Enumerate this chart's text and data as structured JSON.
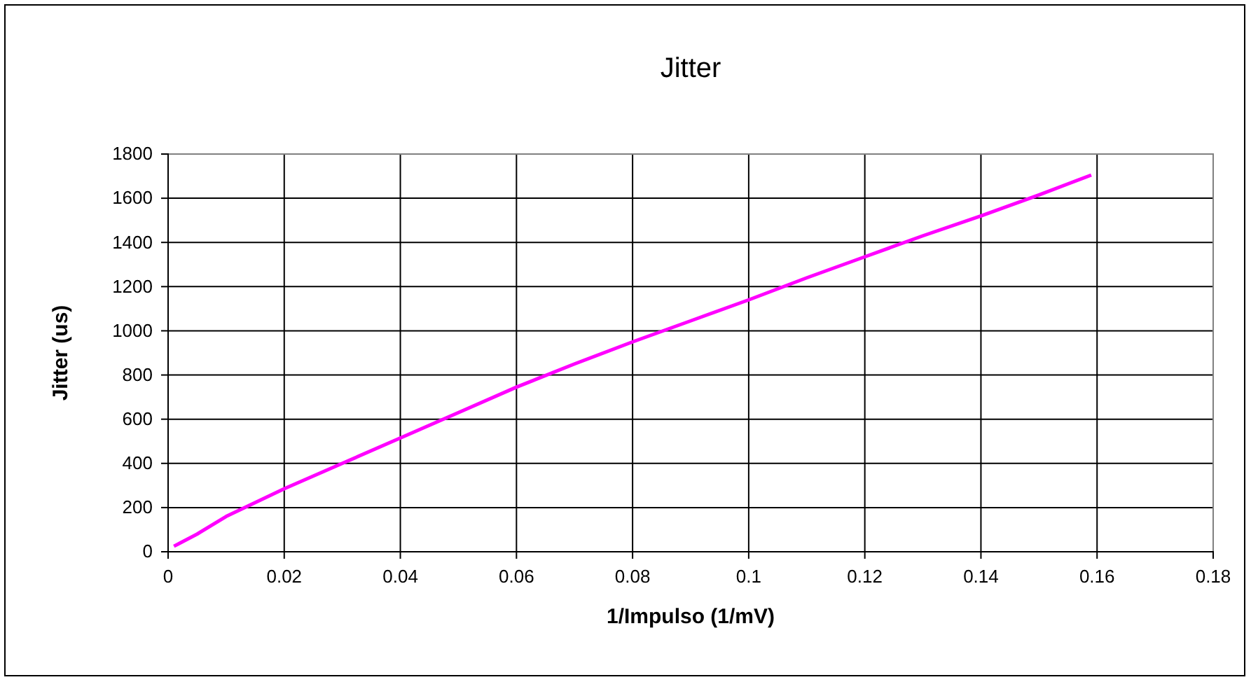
{
  "chart_data": {
    "type": "line",
    "title": "Jitter",
    "xlabel": "1/Impulso (1/mV)",
    "ylabel": "Jitter (us)",
    "x": [
      0.001,
      0.005,
      0.01,
      0.02,
      0.03,
      0.04,
      0.05,
      0.06,
      0.07,
      0.08,
      0.09,
      0.1,
      0.11,
      0.12,
      0.13,
      0.14,
      0.15,
      0.159
    ],
    "series": [
      {
        "color": "#ff00ff",
        "values": [
          25,
          80,
          160,
          285,
          400,
          515,
          630,
          745,
          850,
          950,
          1045,
          1140,
          1240,
          1335,
          1430,
          1520,
          1615,
          1705
        ]
      }
    ],
    "xlim": [
      0,
      0.18
    ],
    "xticks": [
      0,
      0.02,
      0.04,
      0.06,
      0.08,
      0.1,
      0.12,
      0.14,
      0.16,
      0.18
    ],
    "ylim": [
      0,
      1800
    ],
    "yticks": [
      0,
      200,
      400,
      600,
      800,
      1000,
      1200,
      1400,
      1600,
      1800
    ],
    "grid": true,
    "marker": "none",
    "line_style": "solid",
    "legend": false
  }
}
